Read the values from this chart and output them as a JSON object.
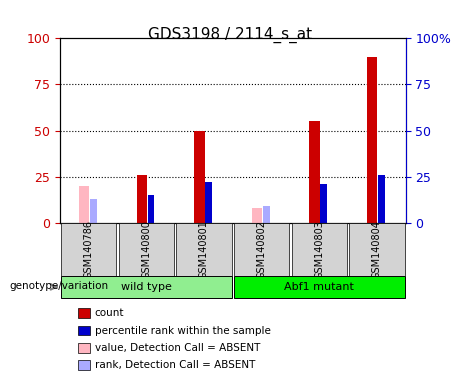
{
  "title": "GDS3198 / 2114_s_at",
  "samples": [
    "GSM140786",
    "GSM140800",
    "GSM140801",
    "GSM140802",
    "GSM140803",
    "GSM140804"
  ],
  "groups": [
    {
      "name": "wild type",
      "samples": [
        "GSM140786",
        "GSM140800",
        "GSM140801"
      ],
      "color": "#90EE90"
    },
    {
      "name": "Abf1 mutant",
      "samples": [
        "GSM140802",
        "GSM140803",
        "GSM140804"
      ],
      "color": "#00DD00"
    }
  ],
  "count_values": [
    0,
    26,
    50,
    0,
    55,
    90
  ],
  "rank_values": [
    0,
    15,
    22,
    0,
    21,
    26
  ],
  "absent_count_values": [
    20,
    0,
    0,
    8,
    0,
    0
  ],
  "absent_rank_values": [
    13,
    0,
    0,
    9,
    0,
    0
  ],
  "ylim": [
    0,
    100
  ],
  "yticks": [
    0,
    25,
    50,
    75,
    100
  ],
  "bar_width": 0.35,
  "count_color": "#CC0000",
  "rank_color": "#0000CC",
  "absent_count_color": "#FFB6C1",
  "absent_rank_color": "#AAAAFF",
  "grid_color": "black",
  "xlabel_color": "black",
  "left_axis_color": "#CC0000",
  "right_axis_color": "#0000CC",
  "genotype_label": "genotype/variation",
  "legend_items": [
    {
      "color": "#CC0000",
      "label": "count"
    },
    {
      "color": "#0000CC",
      "label": "percentile rank within the sample"
    },
    {
      "color": "#FFB6C1",
      "label": "value, Detection Call = ABSENT"
    },
    {
      "color": "#AAAAFF",
      "label": "rank, Detection Call = ABSENT"
    }
  ],
  "background_color": "#f0f0f0",
  "plot_bg": "#ffffff"
}
